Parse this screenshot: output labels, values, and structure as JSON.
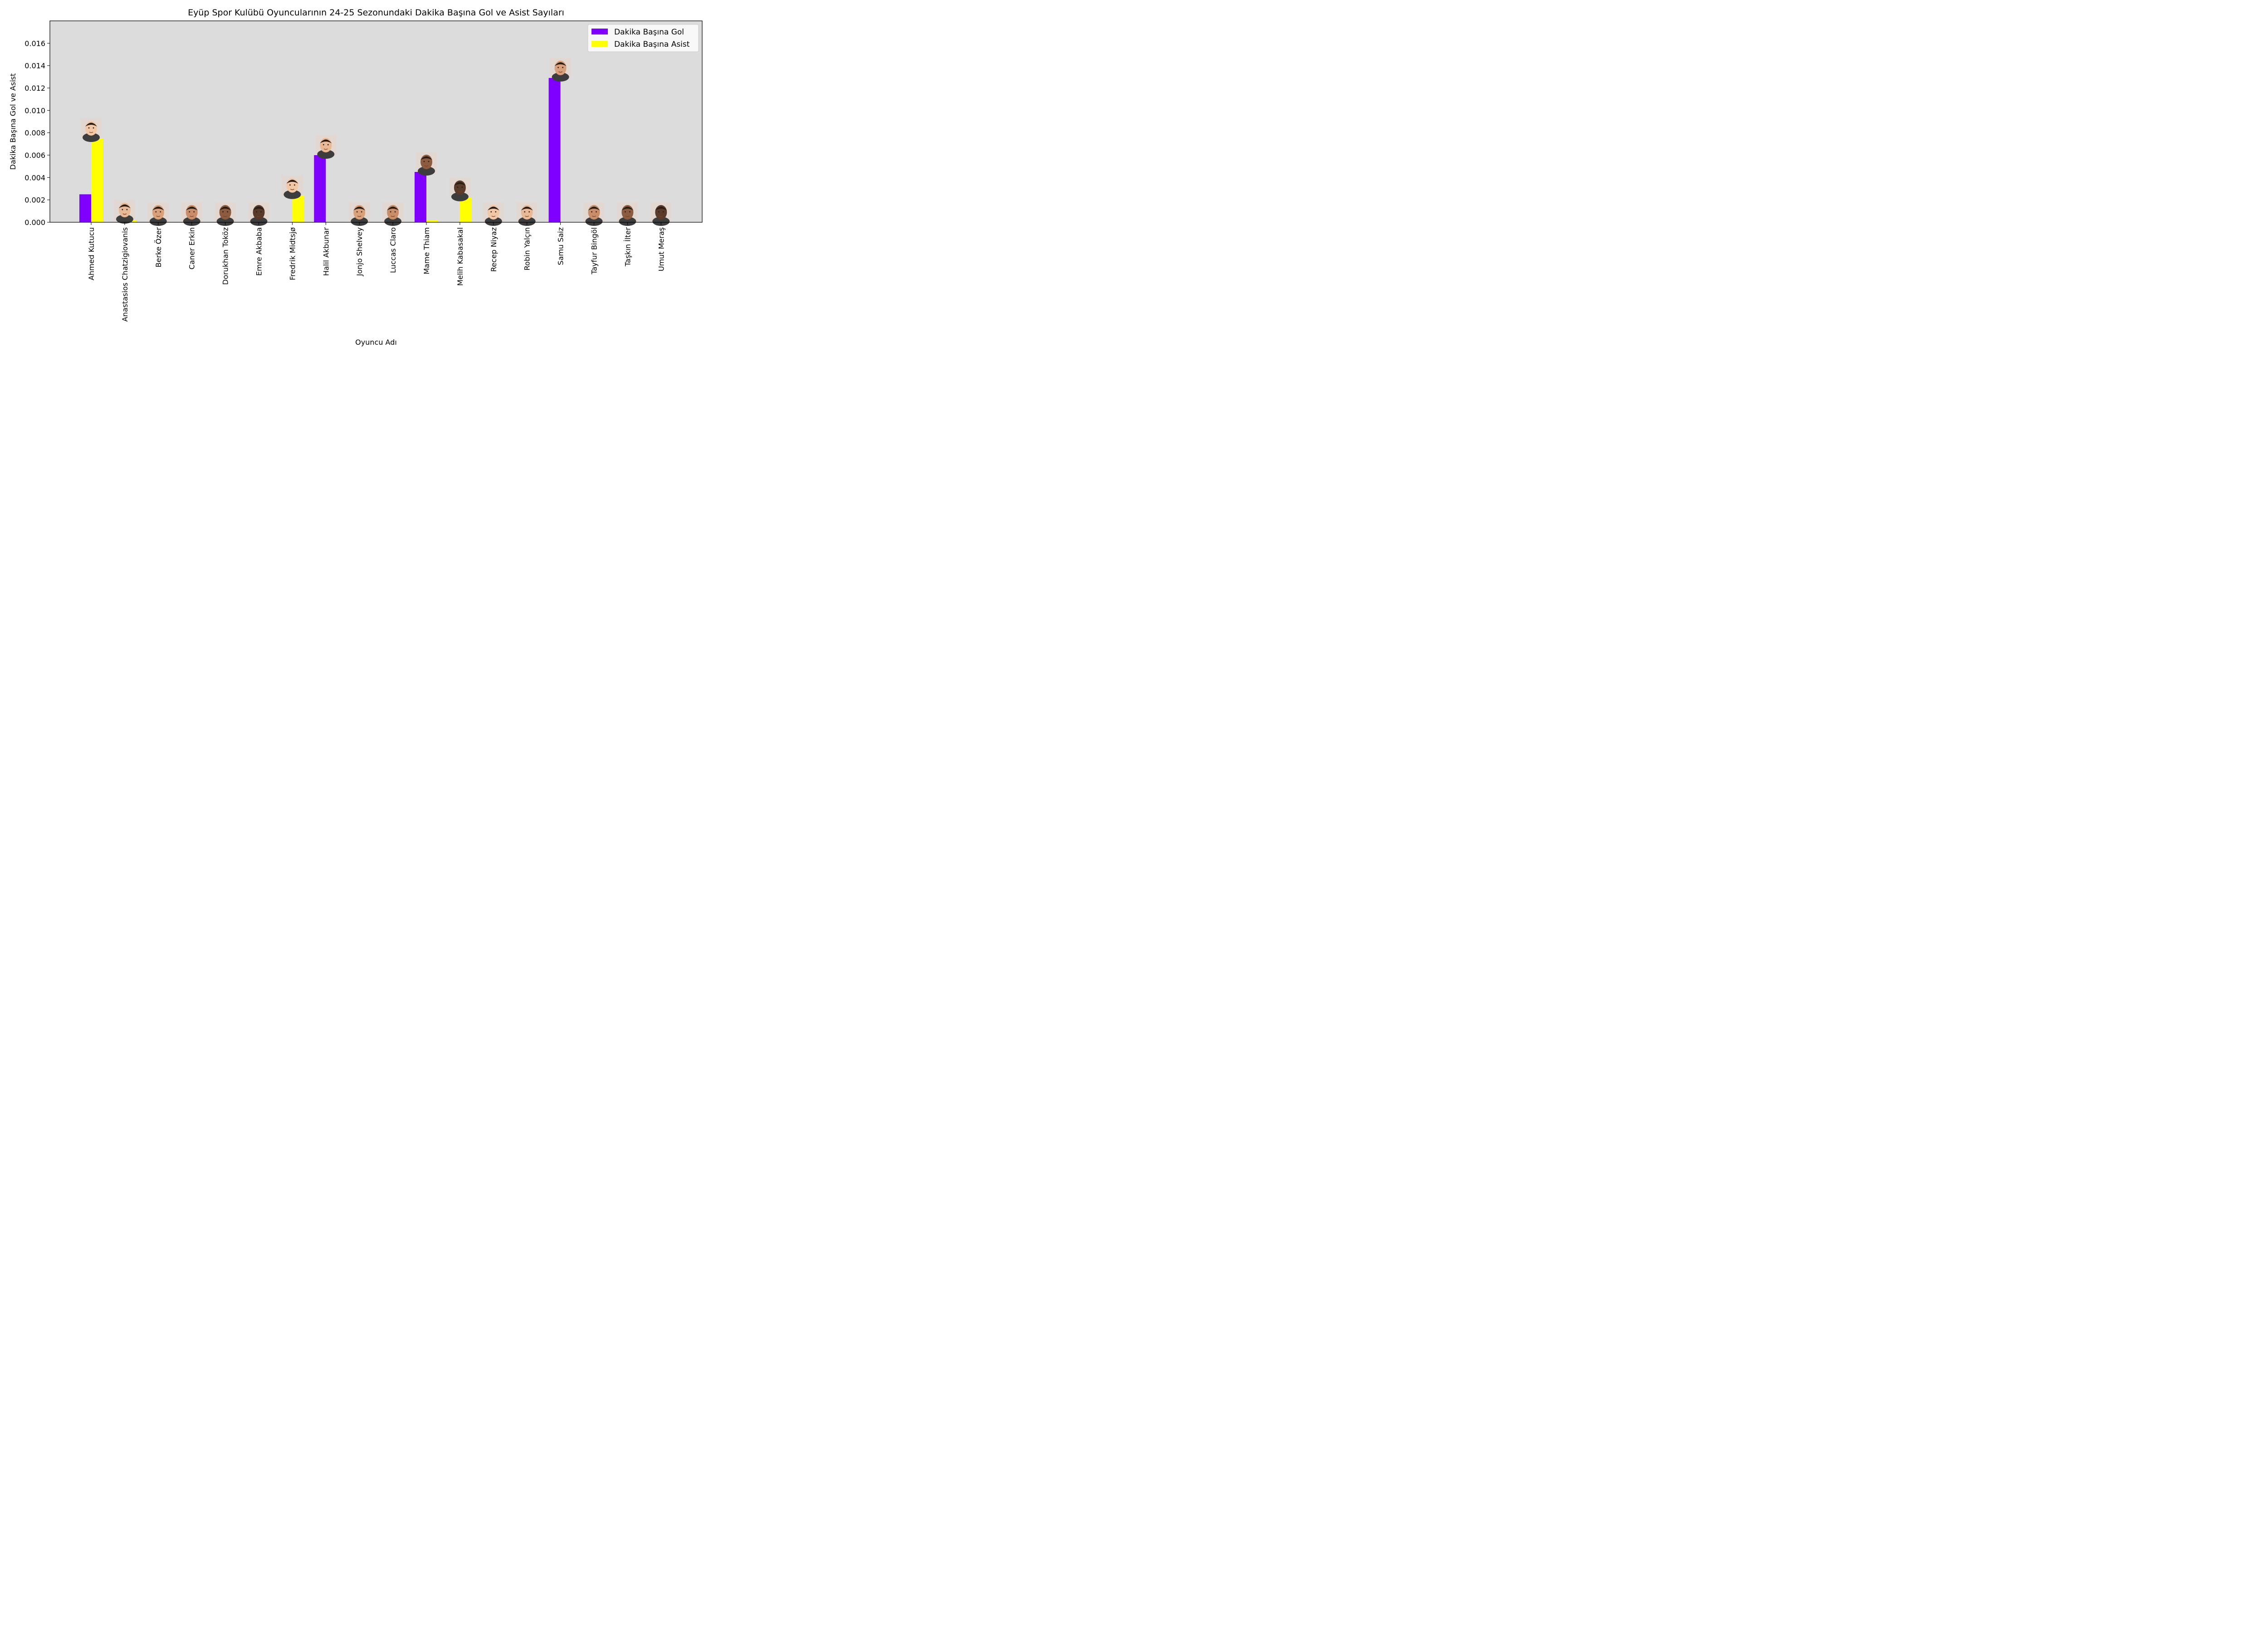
{
  "chart_data": {
    "type": "bar",
    "title": "Eyüp Spor Kulübü Oyuncularının 24-25 Sezonundaki Dakika Başına Gol ve Asist Sayıları",
    "xlabel": "Oyuncu Adı",
    "ylabel": "Dakika Başına Gol ve Asist",
    "ylim": [
      0,
      0.018
    ],
    "yticks": [
      "0.000",
      "0.002",
      "0.004",
      "0.006",
      "0.008",
      "0.010",
      "0.012",
      "0.014",
      "0.016"
    ],
    "categories": [
      "Ahmed Kutucu",
      "Anastasios Chatzigiovanis",
      "Berke Özer",
      "Caner Erkin",
      "Dorukhan Toköz",
      "Emre Akbaba",
      "Fredrik Midtsjø",
      "Halil Akbunar",
      "Jonjo Shelvey",
      "Luccas Claro",
      "Mame Thiam",
      "Melih Kabasakal",
      "Recep Niyaz",
      "Robin Yalçın",
      "Samu Saiz",
      "Tayfur Bingöl",
      "Taşkın İlter",
      "Umut Meraş"
    ],
    "series": [
      {
        "name": "Dakika Başına Gol",
        "color": "#8000ff",
        "values": [
          0.0025,
          0,
          0,
          0,
          0,
          0,
          0,
          0.006,
          0,
          0,
          0.0045,
          0,
          0,
          0,
          0.0129,
          0,
          0,
          0
        ]
      },
      {
        "name": "Dakika Başına Asist",
        "color": "#ffff00",
        "values": [
          0.0075,
          0.0002,
          0,
          0,
          0,
          0,
          0.0024,
          0,
          0,
          0,
          0.0002,
          0.0022,
          0,
          0,
          0,
          0,
          0,
          0
        ]
      }
    ],
    "legend_position": "top-right",
    "grid": false,
    "background_color": "#dcdcdc"
  }
}
